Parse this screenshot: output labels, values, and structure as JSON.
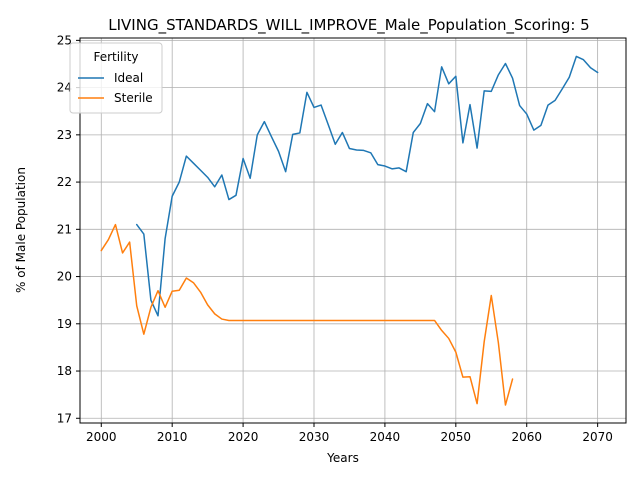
{
  "chart_data": {
    "type": "line",
    "title": "LIVING_STANDARDS_WILL_IMPROVE_Male_Population_Scoring: 5",
    "xlabel": "Years",
    "ylabel": "% of Male Population",
    "xlim": [
      1997,
      2074
    ],
    "ylim": [
      16.9,
      25.05
    ],
    "xticks": [
      2000,
      2010,
      2020,
      2030,
      2040,
      2050,
      2060,
      2070
    ],
    "yticks": [
      17,
      18,
      19,
      20,
      21,
      22,
      23,
      24,
      25
    ],
    "grid": true,
    "legend": {
      "title": "Fertility",
      "placement": "upper-left"
    },
    "series": [
      {
        "name": "Ideal",
        "color": "#1f77b4",
        "x": [
          2005,
          2006,
          2007,
          2008,
          2009,
          2010,
          2011,
          2012,
          2013,
          2014,
          2015,
          2016,
          2017,
          2018,
          2019,
          2020,
          2021,
          2022,
          2023,
          2024,
          2025,
          2026,
          2027,
          2028,
          2029,
          2030,
          2031,
          2032,
          2033,
          2034,
          2035,
          2036,
          2037,
          2038,
          2039,
          2040,
          2041,
          2042,
          2043,
          2044,
          2045,
          2046,
          2047,
          2048,
          2049,
          2050,
          2051,
          2052,
          2053,
          2054,
          2055,
          2056,
          2057,
          2058,
          2059,
          2060,
          2061,
          2062,
          2063,
          2064,
          2065,
          2066,
          2067,
          2068,
          2069,
          2070
        ],
        "y": [
          21.1,
          20.9,
          19.5,
          19.17,
          20.8,
          21.7,
          22.0,
          22.55,
          22.4,
          22.25,
          22.1,
          21.9,
          22.15,
          21.63,
          21.72,
          22.5,
          22.08,
          23.0,
          23.28,
          22.96,
          22.65,
          22.22,
          23.01,
          23.04,
          23.9,
          23.58,
          23.63,
          23.22,
          22.8,
          23.05,
          22.71,
          22.68,
          22.67,
          22.62,
          22.37,
          22.34,
          22.28,
          22.3,
          22.22,
          23.05,
          23.24,
          23.66,
          23.49,
          24.44,
          24.08,
          24.24,
          22.83,
          23.64,
          22.72,
          23.93,
          23.92,
          24.27,
          24.51,
          24.2,
          23.62,
          23.44,
          23.1,
          23.2,
          23.63,
          23.73,
          23.97,
          24.22,
          24.66,
          24.59,
          24.42,
          24.32
        ]
      },
      {
        "name": "Sterile",
        "color": "#ff7f0e",
        "x": [
          2000,
          2001,
          2002,
          2003,
          2004,
          2005,
          2006,
          2007,
          2008,
          2009,
          2010,
          2011,
          2012,
          2013,
          2014,
          2015,
          2016,
          2017,
          2018,
          2019,
          2020,
          2021,
          2022,
          2023,
          2024,
          2025,
          2026,
          2027,
          2028,
          2029,
          2030,
          2031,
          2032,
          2033,
          2034,
          2035,
          2036,
          2037,
          2038,
          2039,
          2040,
          2041,
          2042,
          2043,
          2044,
          2045,
          2046,
          2047,
          2048,
          2049,
          2050,
          2051,
          2052,
          2053,
          2054,
          2055,
          2056,
          2057,
          2058
        ],
        "y": [
          20.55,
          20.78,
          21.1,
          20.5,
          20.73,
          19.38,
          18.78,
          19.35,
          19.7,
          19.35,
          19.69,
          19.71,
          19.97,
          19.87,
          19.67,
          19.4,
          19.21,
          19.1,
          19.07,
          19.07,
          19.07,
          19.07,
          19.07,
          19.07,
          19.07,
          19.07,
          19.07,
          19.07,
          19.07,
          19.07,
          19.07,
          19.07,
          19.07,
          19.07,
          19.07,
          19.07,
          19.07,
          19.07,
          19.07,
          19.07,
          19.07,
          19.07,
          19.07,
          19.07,
          19.07,
          19.07,
          19.07,
          19.07,
          18.86,
          18.69,
          18.4,
          17.87,
          17.88,
          17.31,
          18.62,
          19.6,
          18.6,
          17.28,
          17.83
        ]
      }
    ]
  }
}
